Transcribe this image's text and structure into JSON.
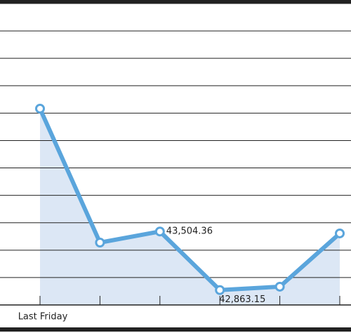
{
  "chart_data": {
    "type": "line",
    "categories": [
      "Last Friday",
      null,
      null,
      null,
      null,
      null
    ],
    "series": [
      {
        "color": "#5aa5dc",
        "fill": "#dce7f5",
        "values": [
          44849,
          43383,
          43504.36,
          42863.15,
          42900,
          43483
        ],
        "value_labels": [
          null,
          null,
          "43,504.36",
          "42,863.15",
          null,
          null
        ]
      }
    ],
    "ylim": [
      42700,
      46000
    ],
    "yticks": [
      42700,
      43000,
      43300,
      43600,
      43900,
      44200,
      44500,
      44800,
      45100,
      45400,
      45700,
      46000
    ],
    "grid": true
  }
}
